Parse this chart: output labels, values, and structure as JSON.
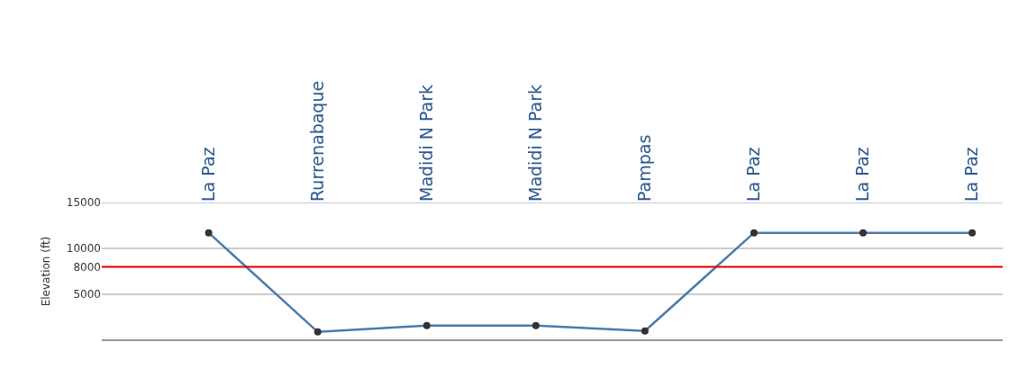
{
  "chart_data": {
    "type": "line",
    "ylabel": "Elevation (ft)",
    "categories": [
      "La Paz",
      "Rurrenabaque",
      "Madidi N Park",
      "Madidi N Park",
      "Pampas",
      "La Paz",
      "La Paz",
      "La Paz"
    ],
    "series": [
      {
        "color": "#4a7aad",
        "values": [
          11700,
          900,
          1600,
          1600,
          1000,
          11700,
          11700,
          11700
        ]
      }
    ],
    "ylim": [
      0,
      15000
    ],
    "yticks": [
      5000,
      8000,
      10000,
      15000
    ],
    "ref_lines": [
      {
        "axis": "y",
        "value": 8000,
        "color": "#e00000"
      }
    ],
    "grid": "y",
    "marker": "circle",
    "line_style": "solid"
  }
}
